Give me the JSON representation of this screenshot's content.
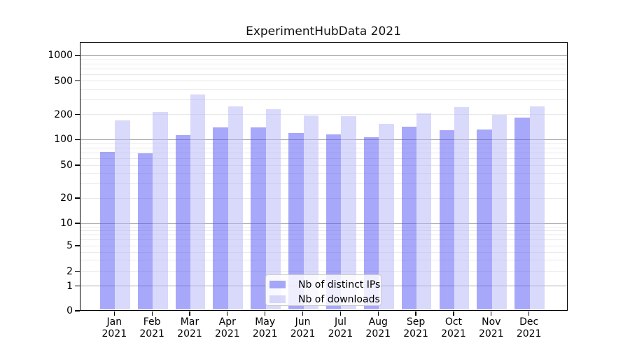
{
  "chart_data": {
    "type": "bar",
    "title": "ExperimentHubData 2021",
    "categories": [
      "Jan",
      "Feb",
      "Mar",
      "Apr",
      "May",
      "Jun",
      "Jul",
      "Aug",
      "Sep",
      "Oct",
      "Nov",
      "Dec"
    ],
    "category_year": "2021",
    "series": [
      {
        "name": "Nb of distinct IPs",
        "color": "rgba(81,81,245,0.5)",
        "solid_color": "#a8a8fa",
        "values": [
          71,
          68,
          112,
          138,
          140,
          118,
          115,
          107,
          141,
          128,
          132,
          181
        ]
      },
      {
        "name": "Nb of downloads",
        "color": "rgba(179,179,247,0.5)",
        "solid_color": "#d9d9fb",
        "values": [
          168,
          212,
          340,
          246,
          228,
          194,
          190,
          153,
          204,
          243,
          198,
          246
        ]
      }
    ],
    "yscale": "symlog",
    "yticks": [
      0,
      1,
      2,
      5,
      10,
      20,
      50,
      100,
      200,
      500,
      1000
    ],
    "ylim": [
      0,
      1470
    ],
    "grid": true,
    "legend_position": "lower center",
    "colors": {
      "grid_major": "#ababab",
      "grid_minor": "#e9e9e9",
      "axis": "#000000",
      "text": "#000000",
      "legend_border": "#cccccc"
    }
  }
}
